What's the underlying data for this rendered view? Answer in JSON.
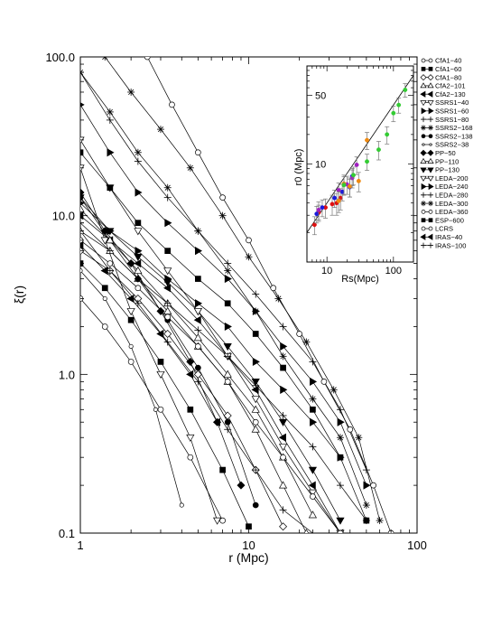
{
  "chart_data": [
    {
      "type": "line",
      "xlabel": "r (Mpc)",
      "ylabel": "ξ(r)",
      "x_scale": "log",
      "y_scale": "log",
      "xlim": [
        1,
        100
      ],
      "ylim": [
        0.1,
        100
      ],
      "x_ticks": [
        "1",
        "10",
        "100"
      ],
      "y_ticks": [
        "0.1",
        "1.0",
        "10.0",
        "100.0"
      ],
      "legend_placement": "right, outside plot",
      "series": [
        {
          "name": "CfA1−40",
          "marker": "circle-open",
          "x": [
            1.0,
            1.4,
            2.0,
            3.0,
            4.5,
            7.0
          ],
          "y": [
            3.0,
            2.0,
            1.2,
            0.6,
            0.3,
            0.12
          ]
        },
        {
          "name": "CfA1−60",
          "marker": "square-filled",
          "x": [
            1.0,
            1.4,
            2.0,
            3.0,
            4.5,
            7.0,
            10.0
          ],
          "y": [
            5.0,
            3.5,
            2.2,
            1.2,
            0.6,
            0.25,
            0.11
          ]
        },
        {
          "name": "CfA1−80",
          "marker": "diamond-open",
          "x": [
            1.0,
            1.5,
            2.2,
            3.3,
            5.0,
            7.5,
            11.0,
            16.0
          ],
          "y": [
            6.0,
            4.5,
            3.0,
            1.8,
            1.0,
            0.55,
            0.25,
            0.11
          ]
        },
        {
          "name": "CfA2−101",
          "marker": "triangle-up-open",
          "x": [
            1.0,
            1.5,
            2.2,
            3.3,
            5.0,
            7.5,
            11.0,
            16.0,
            22.0
          ],
          "y": [
            8.0,
            6.0,
            4.0,
            2.5,
            1.5,
            0.9,
            0.45,
            0.2,
            0.1
          ]
        },
        {
          "name": "CfA2−130",
          "marker": "triangle-left-filled",
          "x": [
            1.0,
            1.5,
            2.2,
            3.3,
            5.0,
            7.5,
            11.0,
            16.0,
            24.0,
            35.0
          ],
          "y": [
            10.0,
            7.0,
            5.0,
            3.5,
            2.2,
            1.3,
            0.8,
            0.4,
            0.2,
            0.1
          ]
        },
        {
          "name": "SSRS1−40",
          "marker": "triangle-down-open",
          "x": [
            1.0,
            1.4,
            2.0,
            3.0,
            4.5,
            6.5
          ],
          "y": [
            20.0,
            7.0,
            2.5,
            1.0,
            0.4,
            0.12
          ]
        },
        {
          "name": "SSRS1−60",
          "marker": "triangle-right-filled",
          "x": [
            1.0,
            1.5,
            2.2,
            3.3,
            5.0,
            7.5,
            11.0,
            16.0,
            24.0,
            35.0
          ],
          "y": [
            12.0,
            8.0,
            6.0,
            4.0,
            2.8,
            2.0,
            1.2,
            0.8,
            0.5,
            0.3
          ]
        },
        {
          "name": "SSRS1−80",
          "marker": "plus",
          "x": [
            1.0,
            1.5,
            2.2,
            3.3,
            5.0,
            7.5,
            11.0,
            16.0,
            24.0
          ],
          "y": [
            8.0,
            4.5,
            2.8,
            1.6,
            0.9,
            0.45,
            0.25,
            0.14,
            0.1
          ]
        },
        {
          "name": "SSRS2−168",
          "marker": "asterisk",
          "x": [
            1.0,
            1.5,
            2.2,
            3.3,
            5.0,
            7.5,
            11.0,
            16.0,
            24.0,
            35.0,
            50.0
          ],
          "y": [
            80.0,
            45.0,
            25.0,
            15.0,
            8.0,
            4.5,
            2.5,
            1.3,
            0.7,
            0.4,
            0.15
          ]
        },
        {
          "name": "SSRS2−138",
          "marker": "circle-filled",
          "x": [
            1.0,
            1.5,
            2.2,
            3.3,
            5.0,
            7.5,
            11.0
          ],
          "y": [
            13.0,
            7.0,
            4.0,
            2.2,
            1.1,
            0.5,
            0.15
          ]
        },
        {
          "name": "SSRS2−38",
          "marker": "circle-open-small",
          "x": [
            1.0,
            1.4,
            2.0,
            2.8,
            4.0
          ],
          "y": [
            4.5,
            3.0,
            1.5,
            0.6,
            0.15
          ]
        },
        {
          "name": "PP−50",
          "marker": "diamond-filled",
          "x": [
            1.0,
            1.4,
            2.0,
            3.0,
            4.5,
            6.5,
            9.0
          ],
          "y": [
            14.0,
            8.0,
            5.0,
            2.5,
            1.2,
            0.5,
            0.2
          ]
        },
        {
          "name": "PP−110",
          "marker": "triangle-up-open",
          "x": [
            1.0,
            1.5,
            2.2,
            3.3,
            5.0,
            7.5,
            11.0,
            16.0,
            24.0
          ],
          "y": [
            11.0,
            7.0,
            4.5,
            2.8,
            1.7,
            1.0,
            0.6,
            0.3,
            0.13
          ]
        },
        {
          "name": "PP−130",
          "marker": "triangle-down-filled",
          "x": [
            1.0,
            1.5,
            2.2,
            3.3,
            5.0,
            7.5,
            11.0,
            16.0,
            24.0,
            35.0
          ],
          "y": [
            13.0,
            8.0,
            5.5,
            3.8,
            2.5,
            1.5,
            0.9,
            0.5,
            0.25,
            0.12
          ]
        },
        {
          "name": "LEDA−200",
          "marker": "triangle-down-open",
          "x": [
            1.0,
            1.5,
            2.2,
            3.3,
            5.0,
            7.5,
            11.0,
            16.0,
            24.0,
            35.0
          ],
          "y": [
            30.0,
            15.0,
            8.0,
            4.5,
            2.5,
            1.3,
            0.7,
            0.35,
            0.18,
            0.1
          ]
        },
        {
          "name": "LEDA−240",
          "marker": "triangle-right-filled",
          "x": [
            1.0,
            1.5,
            2.2,
            3.3,
            5.0,
            7.5,
            11.0,
            16.0,
            24.0,
            35.0,
            50.0
          ],
          "y": [
            50.0,
            25.0,
            14.0,
            9.0,
            6.0,
            4.0,
            2.5,
            1.5,
            0.9,
            0.5,
            0.2
          ]
        },
        {
          "name": "LEDA−280",
          "marker": "plus",
          "x": [
            1.0,
            1.5,
            2.2,
            3.3,
            5.0,
            7.5,
            11.0,
            16.0,
            24.0,
            35.0,
            50.0
          ],
          "y": [
            80.0,
            40.0,
            22.0,
            13.0,
            8.0,
            5.0,
            3.2,
            2.0,
            1.2,
            0.6,
            0.25
          ]
        },
        {
          "name": "LEDA−300",
          "marker": "asterisk",
          "x": [
            1.4,
            2.0,
            3.0,
            4.5,
            7.0,
            10.0,
            15.0,
            22.0,
            32.0,
            45.0,
            60.0
          ],
          "y": [
            100.0,
            60.0,
            35.0,
            20.0,
            10.0,
            5.5,
            3.0,
            1.6,
            0.8,
            0.4,
            0.12
          ]
        },
        {
          "name": "LEDA−360",
          "marker": "circle-open",
          "x": [
            2.5,
            3.5,
            5.0,
            7.0,
            10.0,
            14.0,
            20.0,
            28.0,
            40.0,
            55.0,
            70.0
          ],
          "y": [
            100.0,
            50.0,
            25.0,
            13.0,
            7.0,
            3.5,
            1.8,
            0.9,
            0.45,
            0.2,
            0.1
          ]
        },
        {
          "name": "ESP−600",
          "marker": "square-filled",
          "x": [
            1.0,
            1.5,
            2.2,
            3.3,
            5.0,
            7.5,
            11.0,
            16.0,
            24.0,
            35.0,
            50.0
          ],
          "y": [
            25.0,
            15.0,
            9.0,
            6.0,
            4.0,
            2.8,
            1.8,
            1.1,
            0.6,
            0.3,
            0.12
          ]
        },
        {
          "name": "LCRS",
          "marker": "circle-open",
          "x": [
            1.0,
            1.5,
            2.2,
            3.3,
            5.0,
            7.5,
            11.0,
            16.0,
            24.0,
            35.0
          ],
          "y": [
            7.0,
            5.0,
            3.5,
            2.3,
            1.5,
            0.9,
            0.5,
            0.3,
            0.17,
            0.1
          ]
        },
        {
          "name": "IRAS−40",
          "marker": "triangle-left-filled",
          "x": [
            1.0,
            1.4,
            2.0,
            3.0,
            4.5,
            6.5
          ],
          "y": [
            6.5,
            4.5,
            3.0,
            1.8,
            1.0,
            0.5
          ]
        },
        {
          "name": "IRAS−100",
          "marker": "plus",
          "x": [
            1.0,
            1.5,
            2.2,
            3.3,
            5.0,
            7.5,
            11.0,
            16.0,
            24.0,
            35.0,
            50.0
          ],
          "y": [
            9.0,
            6.0,
            4.0,
            2.8,
            1.9,
            1.3,
            0.85,
            0.55,
            0.35,
            0.2,
            0.12
          ]
        }
      ]
    },
    {
      "type": "scatter",
      "xlabel": "Rs(Mpc)",
      "ylabel": "r0 (Mpc)",
      "x_scale": "log",
      "y_scale": "log",
      "xlim": [
        5,
        200
      ],
      "ylim": [
        1,
        100
      ],
      "x_ticks": [
        "10",
        "100"
      ],
      "y_ticks": [
        "10",
        "50"
      ],
      "reference_line": {
        "x": [
          5,
          200
        ],
        "y": [
          2.0,
          80.0
        ]
      },
      "series": [
        {
          "name": "red",
          "color": "#e01010",
          "x": [
            6.5,
            7.5,
            9.5,
            12.0,
            14.0,
            16.0
          ],
          "y": [
            2.4,
            3.2,
            3.6,
            3.9,
            4.0,
            4.5
          ],
          "yerr": [
            0.5,
            0.6,
            0.8,
            0.9,
            1.0,
            1.1
          ]
        },
        {
          "name": "blue",
          "color": "#1a1adc",
          "x": [
            7.0,
            8.5,
            13.0,
            17.0,
            22.0,
            24.0
          ],
          "y": [
            3.1,
            3.6,
            4.5,
            5.2,
            5.8,
            7.5
          ],
          "yerr": [
            0.6,
            0.7,
            0.9,
            1.0,
            1.2,
            1.5
          ]
        },
        {
          "name": "purple",
          "color": "#a020c0",
          "x": [
            7.5,
            15.0,
            20.0,
            24.0,
            28.0
          ],
          "y": [
            3.4,
            5.4,
            6.2,
            7.2,
            9.8
          ],
          "yerr": [
            0.7,
            1.0,
            1.3,
            1.5,
            2.0
          ]
        },
        {
          "name": "orange",
          "color": "#f08a10",
          "x": [
            15.0,
            18.0,
            22.0,
            30.0,
            40.0
          ],
          "y": [
            4.2,
            6.3,
            5.9,
            6.7,
            17.5
          ],
          "yerr": [
            1.0,
            1.4,
            1.3,
            1.5,
            3.5
          ]
        },
        {
          "name": "green",
          "color": "#33cc33",
          "x": [
            18.0,
            25.0,
            40.0,
            60.0,
            80.0,
            100.0,
            120.0,
            150.0
          ],
          "y": [
            6.1,
            7.7,
            10.6,
            14.0,
            20.0,
            33.0,
            40.0,
            57.0
          ],
          "yerr": [
            1.3,
            1.6,
            2.0,
            3.0,
            4.0,
            6.0,
            7.0,
            9.0
          ]
        }
      ]
    }
  ]
}
